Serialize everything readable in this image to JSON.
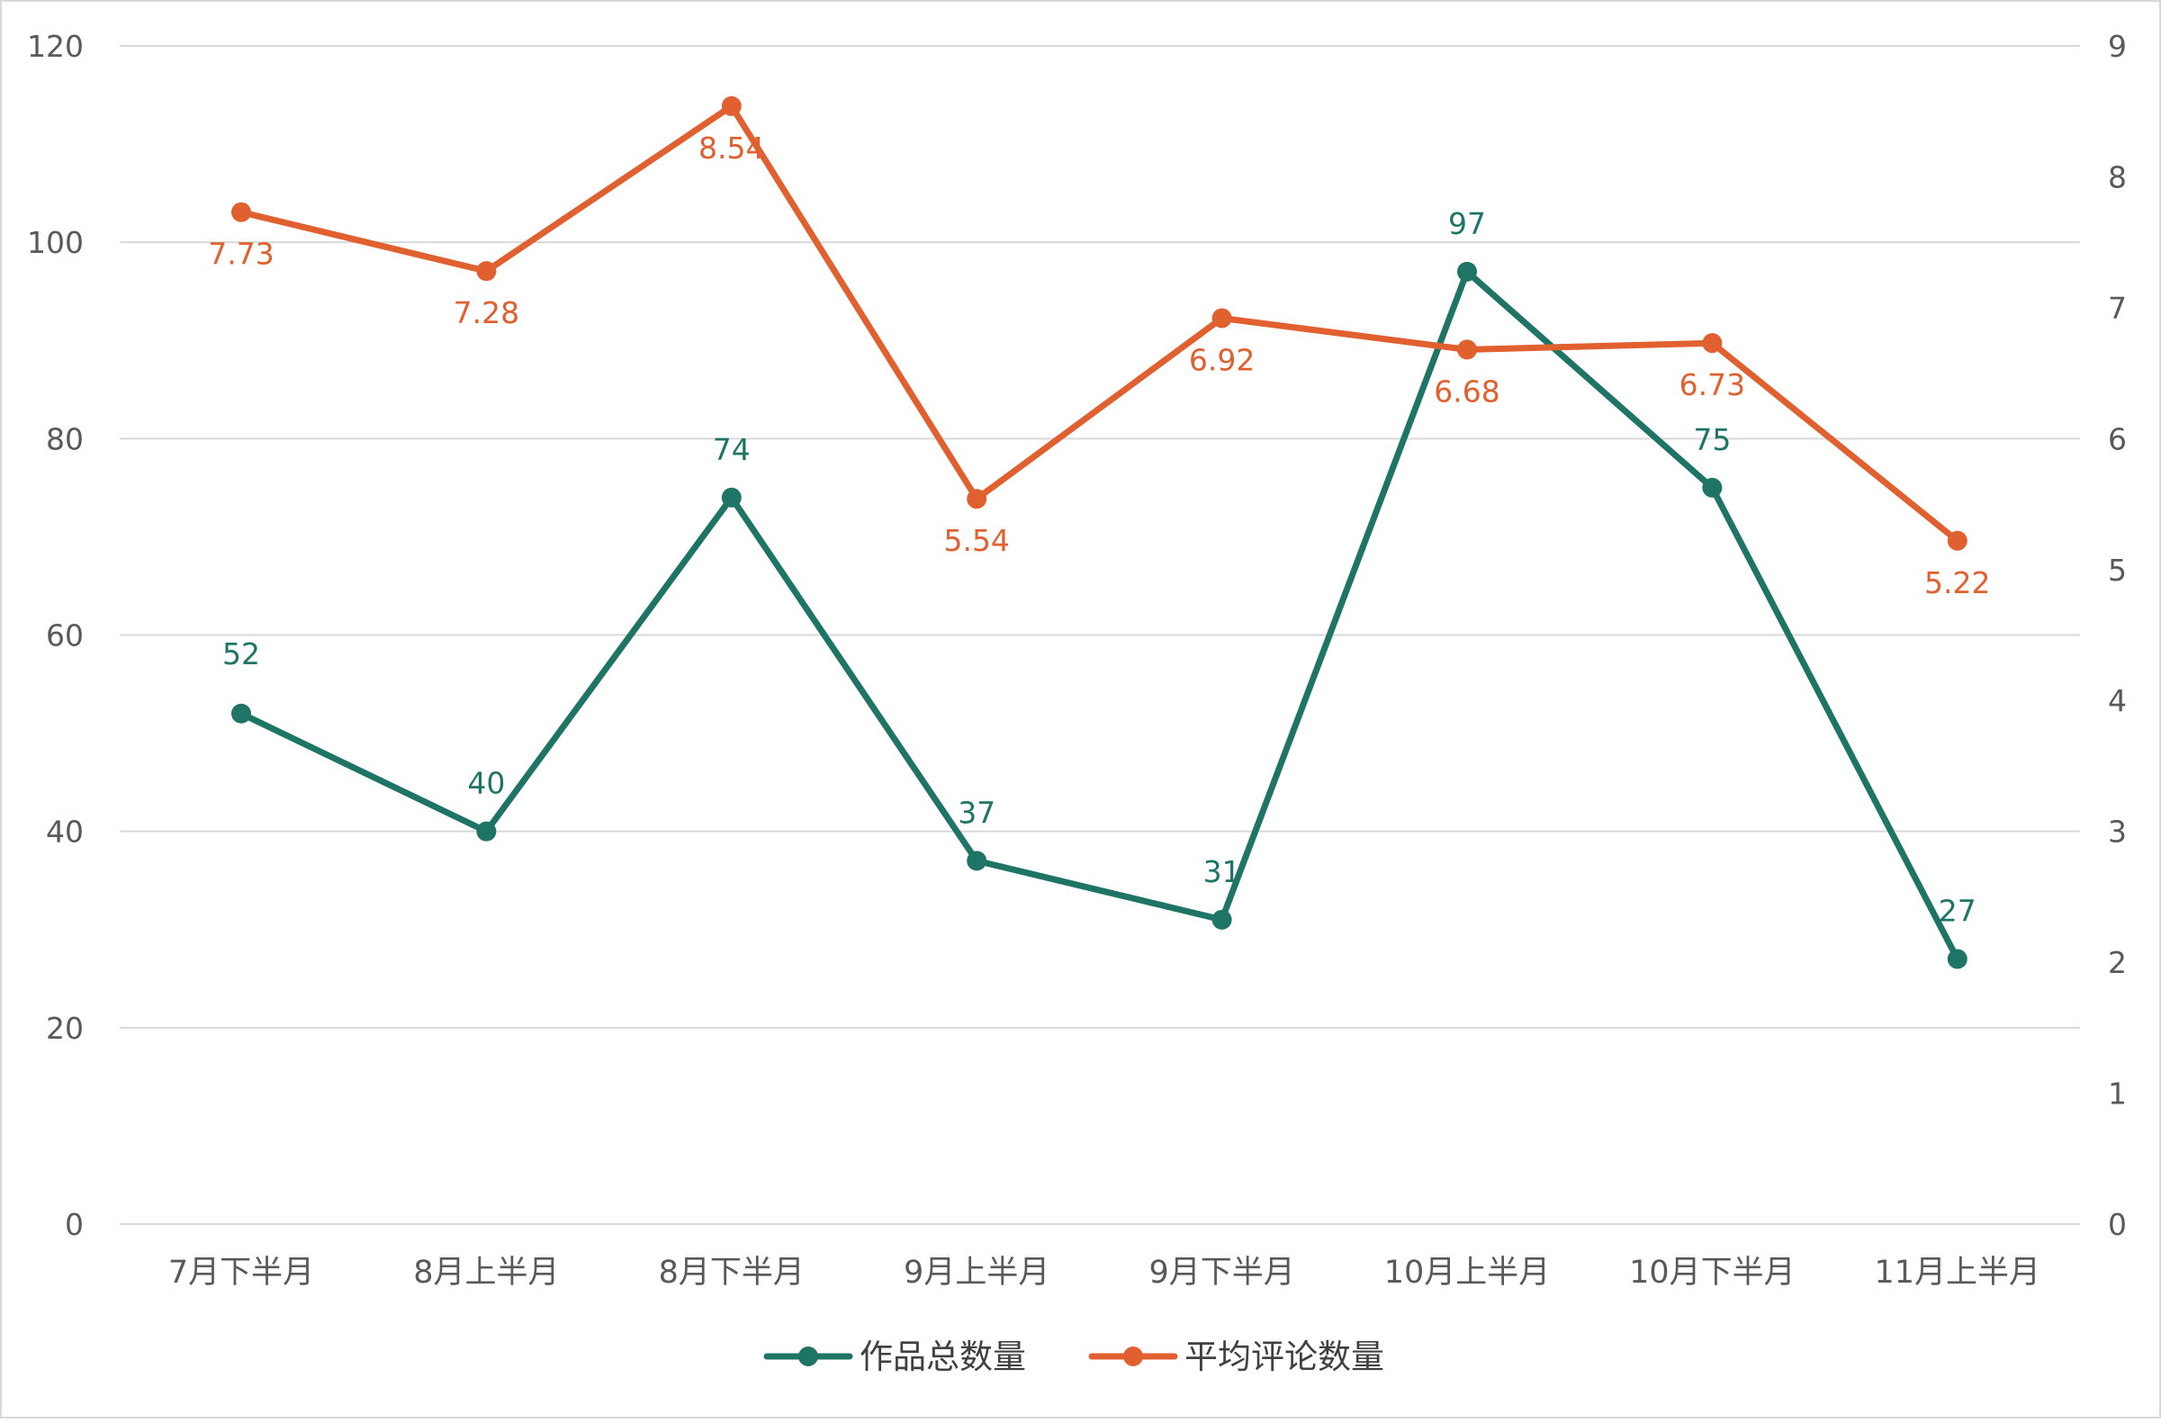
{
  "chart_data": {
    "type": "line",
    "categories": [
      "7月下半月",
      "8月上半月",
      "8月下半月",
      "9月上半月",
      "9月下半月",
      "10月上半月",
      "10月下半月",
      "11月上半月"
    ],
    "series": [
      {
        "name": "作品总数量",
        "axis": "left",
        "color": "#1e7465",
        "values": [
          52,
          40,
          74,
          37,
          31,
          97,
          75,
          27
        ],
        "labels": [
          "52",
          "40",
          "74",
          "37",
          "31",
          "97",
          "75",
          "27"
        ]
      },
      {
        "name": "平均评论数量",
        "axis": "right",
        "color": "#e06030",
        "values": [
          7.73,
          7.28,
          8.54,
          5.54,
          6.92,
          6.68,
          6.73,
          5.22
        ],
        "labels": [
          "7.73",
          "7.28",
          "8.54",
          "5.54",
          "6.92",
          "6.68",
          "6.73",
          "5.22"
        ]
      }
    ],
    "y_left": {
      "range": [
        0,
        120
      ],
      "ticks": [
        "0",
        "20",
        "40",
        "60",
        "80",
        "100",
        "120"
      ]
    },
    "y_right": {
      "range": [
        0,
        9
      ],
      "ticks": [
        "0",
        "1",
        "2",
        "3",
        "4",
        "5",
        "6",
        "7",
        "8",
        "9"
      ]
    },
    "grid": true,
    "legend_position": "bottom",
    "colors": {
      "gridline": "#d9d9d9",
      "tick_text": "#595959",
      "border": "#d9d9d9"
    }
  }
}
